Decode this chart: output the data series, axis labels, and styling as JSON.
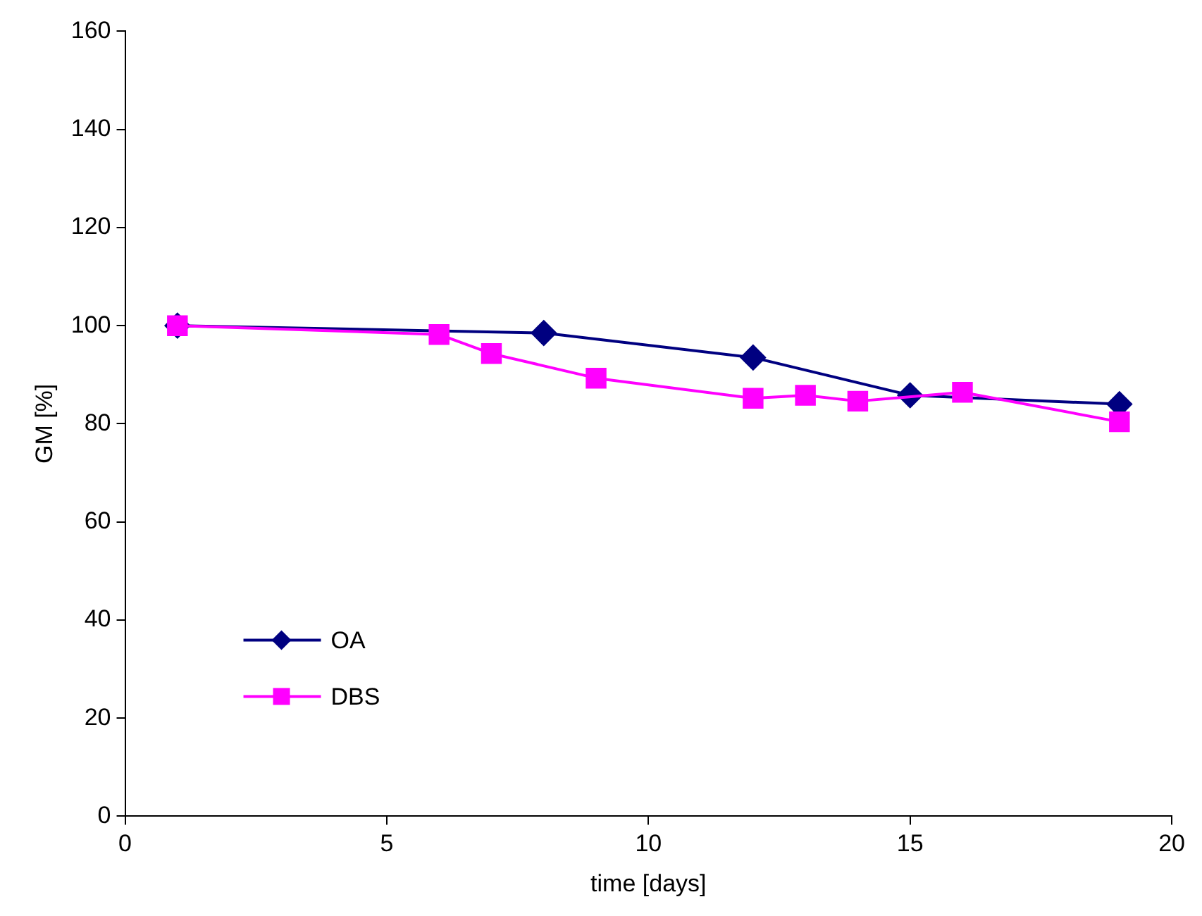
{
  "chart_data": {
    "type": "line",
    "xlabel": "time [days]",
    "ylabel": "GM [%]",
    "xlim": [
      0,
      20
    ],
    "xticks": [
      0,
      5,
      10,
      15,
      20
    ],
    "ylim": [
      0,
      160
    ],
    "yticks": [
      0,
      20,
      40,
      60,
      80,
      100,
      120,
      140,
      160
    ],
    "grid": false,
    "legend": "bottom left",
    "line_style": "solid",
    "series": [
      {
        "name": "OA",
        "color": "#000080",
        "marker": "diamond",
        "x": [
          1,
          8,
          12,
          15,
          19
        ],
        "values": [
          100,
          98.5,
          93.5,
          85.8,
          84
        ]
      },
      {
        "name": "DBS",
        "color": "#ff00ff",
        "marker": "square",
        "x": [
          1,
          6,
          7,
          9,
          12,
          13,
          14,
          16,
          19
        ],
        "values": [
          100,
          98.2,
          94.3,
          89.3,
          85.2,
          85.8,
          84.6,
          86.4,
          80.4
        ]
      }
    ]
  }
}
